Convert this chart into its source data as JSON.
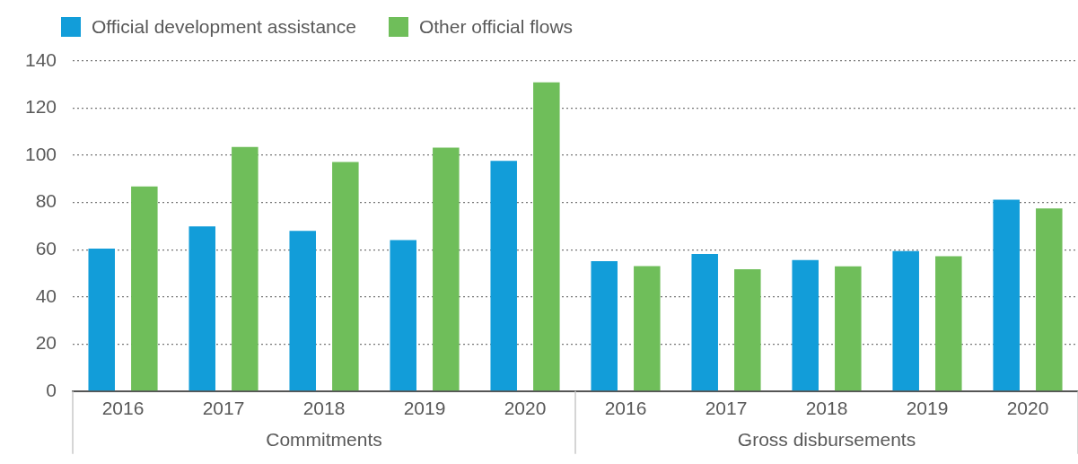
{
  "chart_data": {
    "type": "bar",
    "categories": [
      "2016",
      "2017",
      "2018",
      "2019",
      "2020",
      "2016",
      "2017",
      "2018",
      "2019",
      "2020"
    ],
    "series": [
      {
        "name": "Official development assistance",
        "color": "#129dd9",
        "values": [
          60.4,
          69.9,
          68.0,
          64.1,
          97.7,
          55.1,
          58.2,
          55.6,
          59.4,
          81.2
        ]
      },
      {
        "name": "Other official flows",
        "color": "#6fbe5a",
        "values": [
          86.8,
          103.6,
          97.2,
          103.3,
          131,
          53.0,
          51.7,
          52.9,
          57.2,
          77.5
        ]
      }
    ],
    "annotations": [
      "Commitments",
      "Gross disbursements"
    ],
    "ylim": [
      0,
      140
    ],
    "yticks": [
      0,
      20,
      40,
      60,
      80,
      100,
      120,
      140
    ],
    "grid": "y",
    "legend": "top left"
  }
}
